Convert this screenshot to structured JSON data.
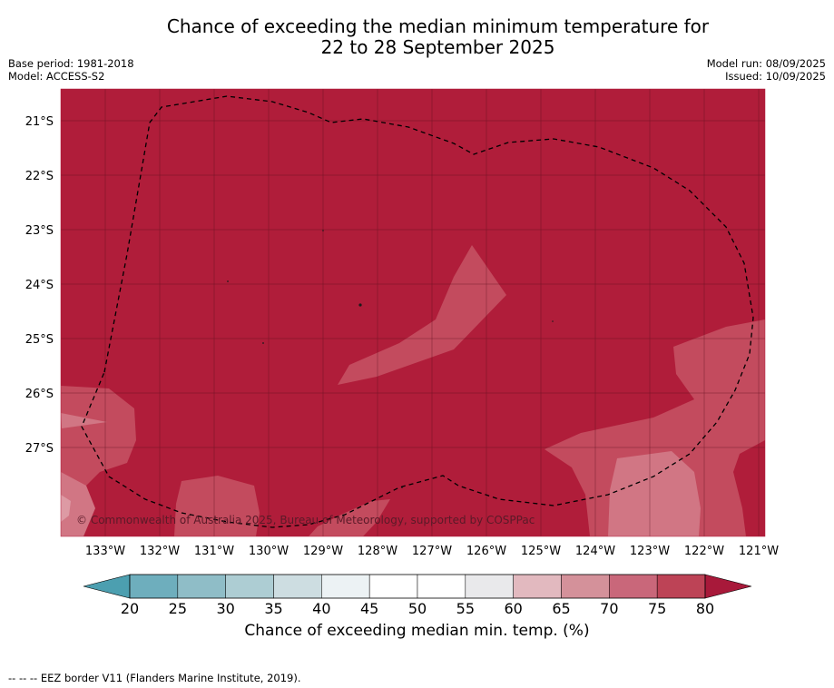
{
  "title": {
    "line1": "Chance of exceeding the median minimum temperature for",
    "line2": "22 to 28 September 2025"
  },
  "meta": {
    "base_period": "Base period: 1981-2018",
    "model": "Model: ACCESS-S2",
    "model_run": "Model run: 08/09/2025",
    "issued": "Issued: 10/09/2025"
  },
  "map": {
    "longitude_labels": [
      "133°W",
      "132°W",
      "131°W",
      "130°W",
      "129°W",
      "128°W",
      "127°W",
      "126°W",
      "125°W",
      "124°W",
      "123°W",
      "122°W",
      "121°W"
    ],
    "latitude_labels": [
      "21°S",
      "22°S",
      "23°S",
      "24°S",
      "25°S",
      "26°S",
      "27°S"
    ],
    "copyright": "© Commonwealth of Australia 2025, Bureau of Meteorology, supported by COSPPac",
    "dominant_category": "above 80%",
    "colors": {
      "above_80": "#b01d3a",
      "band_75_80": "#bf4a5e",
      "band_70_75": "#c96575",
      "band_65_70": "#d98f98"
    }
  },
  "colorbar": {
    "ticks": [
      "20",
      "25",
      "30",
      "35",
      "40",
      "45",
      "50",
      "55",
      "60",
      "65",
      "70",
      "75",
      "80"
    ],
    "colors": [
      "#6eaebd",
      "#8fbdc7",
      "#adcdd3",
      "#cddde1",
      "#ecf2f4",
      "#ffffff",
      "#ffffff",
      "#e9e9eb",
      "#e2b9bf",
      "#d4919a",
      "#c9677a",
      "#bd4356"
    ],
    "low_extend_color": "#4c9fb0",
    "high_extend_color": "#a8193a",
    "label": "Chance of exceeding median min. temp. (%)"
  },
  "footer": {
    "legend_symbol": "-- -- --",
    "legend_text": "EEZ border V11 (Flanders Marine Institute, 2019)."
  }
}
